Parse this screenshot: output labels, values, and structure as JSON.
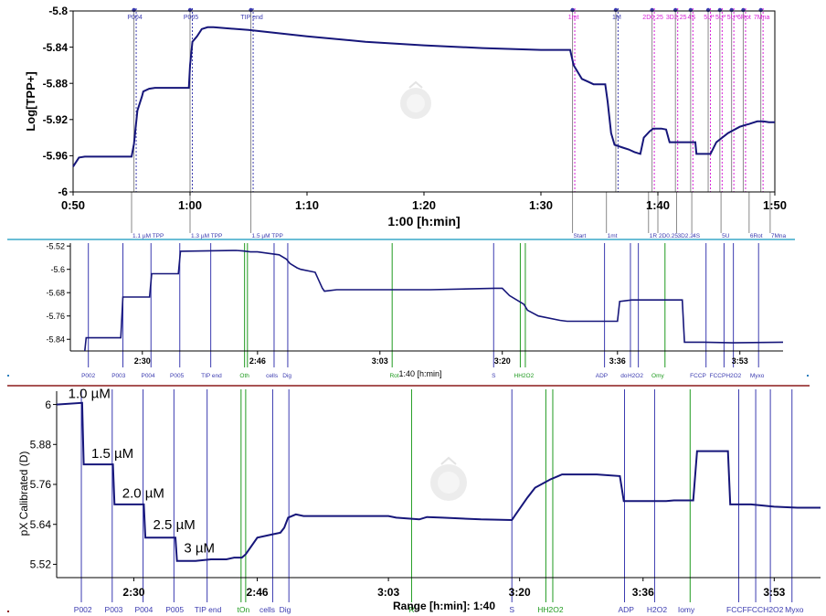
{
  "colors": {
    "trace": "#16167a",
    "event_blue": "#3b3bb0",
    "event_green": "#1f9a1f",
    "event_magenta": "#d81fd8",
    "event_gray": "#8a8a8a",
    "separator_top": "#3aa8c8",
    "separator_bottom": "#8b1a1a"
  },
  "chart_data": [
    {
      "type": "line",
      "id": "top",
      "ylabel": "Log[TPP+]",
      "xlabel": "1:00 [h:min]",
      "xlim": [
        50,
        110
      ],
      "ylim": [
        -6.0,
        -5.8
      ],
      "yticks": [
        -6.0,
        -5.96,
        -5.92,
        -5.88,
        -5.84,
        -5.8
      ],
      "ytick_labels": [
        "-6",
        "-5.96",
        "-5.92",
        "-5.88",
        "-5.84",
        "-5.8"
      ],
      "xticks": [
        50,
        60,
        70,
        80,
        90,
        100,
        110
      ],
      "xtick_labels": [
        "0:50",
        "1:00",
        "1:10",
        "1:20",
        "1:30",
        "1:40",
        "1:50"
      ],
      "series": [
        {
          "x": [
            50,
            50.5,
            51,
            55,
            55.2,
            55.5,
            55.9,
            56,
            56.5,
            57,
            59,
            59.9,
            60,
            60.2,
            60.6,
            61,
            61.5,
            62,
            65,
            70,
            75,
            80,
            85,
            90,
            92,
            92.5,
            92.8,
            93.5,
            94,
            94.5,
            95.5,
            95.7,
            96,
            96.3,
            97,
            97.5,
            98,
            98.5,
            98.8,
            99.3,
            99.6,
            100,
            100.3,
            100.7,
            101,
            101.5,
            101.8,
            102.5,
            103.2,
            103.3,
            103.6,
            104,
            104.5,
            105,
            106,
            107,
            107.5,
            107.8,
            108,
            108.5,
            109,
            109.5,
            110
          ],
          "y": [
            -5.972,
            -5.962,
            -5.961,
            -5.961,
            -5.947,
            -5.91,
            -5.894,
            -5.889,
            -5.886,
            -5.885,
            -5.885,
            -5.885,
            -5.86,
            -5.834,
            -5.828,
            -5.82,
            -5.818,
            -5.818,
            -5.821,
            -5.828,
            -5.834,
            -5.838,
            -5.841,
            -5.843,
            -5.843,
            -5.843,
            -5.86,
            -5.875,
            -5.878,
            -5.881,
            -5.881,
            -5.9,
            -5.935,
            -5.948,
            -5.951,
            -5.953,
            -5.956,
            -5.958,
            -5.94,
            -5.933,
            -5.93,
            -5.93,
            -5.93,
            -5.931,
            -5.945,
            -5.945,
            -5.945,
            -5.945,
            -5.945,
            -5.958,
            -5.958,
            -5.958,
            -5.958,
            -5.945,
            -5.935,
            -5.928,
            -5.926,
            -5.925,
            -5.924,
            -5.922,
            -5.922,
            -5.923,
            -5.923
          ]
        }
      ],
      "markers_top": [
        {
          "label": "P004",
          "x": 55.2,
          "color": "blue"
        },
        {
          "label": "P005",
          "x": 60.0,
          "color": "blue"
        },
        {
          "label": "TIP end",
          "x": 65.2,
          "color": "blue"
        },
        {
          "label": "1mt",
          "x": 92.7,
          "color": "magenta"
        },
        {
          "label": "1M",
          "x": 96.4,
          "color": "blue"
        },
        {
          "label": "2D0.25",
          "x": 99.5,
          "color": "magenta"
        },
        {
          "label": "3D2.25",
          "x": 101.5,
          "color": "magenta"
        },
        {
          "label": "4S",
          "x": 102.8,
          "color": "magenta"
        },
        {
          "label": "5U*",
          "x": 104.3,
          "color": "magenta"
        },
        {
          "label": "5U*",
          "x": 105.3,
          "color": "magenta"
        },
        {
          "label": "5U*",
          "x": 106.3,
          "color": "magenta"
        },
        {
          "label": "6Rot",
          "x": 107.3,
          "color": "magenta"
        },
        {
          "label": "7Mna",
          "x": 108.8,
          "color": "magenta"
        }
      ],
      "markers_bottom": [
        {
          "label": "1.1 µM TPP",
          "x": 55.0
        },
        {
          "label": "1.3 µM TPP",
          "x": 60.0
        },
        {
          "label": "1.5 µM TPP",
          "x": 65.2
        },
        {
          "label": "Start",
          "x": 92.7
        },
        {
          "label": "1mt",
          "x": 95.6
        },
        {
          "label": "1R",
          "x": 99.2
        },
        {
          "label": "2D0.25",
          "x": 100.0
        },
        {
          "label": "3D2.2",
          "x": 101.6
        },
        {
          "label": "4S",
          "x": 102.9
        },
        {
          "label": "5U",
          "x": 105.4
        },
        {
          "label": "6Rot",
          "x": 107.8
        },
        {
          "label": "7Mna",
          "x": 109.6
        }
      ]
    },
    {
      "type": "line",
      "id": "middle",
      "xlabel": "1:40 [h:min]",
      "xlim": [
        140,
        239
      ],
      "ylim": [
        -5.88,
        -5.51
      ],
      "yticks": [
        -5.84,
        -5.76,
        -5.68,
        -5.6,
        -5.52
      ],
      "ytick_labels": [
        "-5.84",
        "-5.76",
        "-5.68",
        "-5.6",
        "-5.52"
      ],
      "xticks": [
        150,
        166,
        183,
        200,
        216,
        233
      ],
      "xtick_labels": [
        "2:30",
        "2:46",
        "3:03",
        "3:20",
        "3:36",
        "3:53"
      ],
      "series": [
        {
          "x": [
            142,
            142.2,
            147,
            147.3,
            151,
            151.3,
            155,
            155.3,
            163,
            164,
            165,
            166,
            169,
            170,
            170.5,
            171.5,
            172,
            174,
            175,
            175.3,
            177,
            190,
            199,
            199.2,
            200,
            201,
            203,
            203.5,
            205,
            208,
            209,
            211,
            212,
            213,
            214,
            216,
            216.3,
            218,
            220,
            221,
            221.5,
            224,
            225,
            225.3,
            228,
            232,
            239
          ],
          "y": [
            -5.88,
            -5.835,
            -5.835,
            -5.695,
            -5.695,
            -5.615,
            -5.615,
            -5.538,
            -5.535,
            -5.537,
            -5.54,
            -5.54,
            -5.55,
            -5.565,
            -5.58,
            -5.595,
            -5.6,
            -5.61,
            -5.665,
            -5.675,
            -5.67,
            -5.67,
            -5.665,
            -5.665,
            -5.665,
            -5.69,
            -5.72,
            -5.74,
            -5.76,
            -5.775,
            -5.778,
            -5.778,
            -5.778,
            -5.778,
            -5.778,
            -5.778,
            -5.71,
            -5.705,
            -5.705,
            -5.705,
            -5.705,
            -5.705,
            -5.705,
            -5.85,
            -5.85,
            -5.852,
            -5.85
          ]
        }
      ],
      "markers": [
        {
          "label": "P002",
          "x": 142.5,
          "color": "blue"
        },
        {
          "label": "P003",
          "x": 147.3,
          "color": "blue"
        },
        {
          "label": "P004",
          "x": 151.2,
          "color": "blue"
        },
        {
          "label": "P005",
          "x": 155.2,
          "color": "blue"
        },
        {
          "label": "TIP end",
          "x": 159.5,
          "color": "blue"
        },
        {
          "label": "Oligo",
          "x": 164.2,
          "color": "green"
        },
        {
          "label": "On",
          "x": 164.6,
          "color": "green"
        },
        {
          "label": "cells",
          "x": 168.3,
          "color": "blue"
        },
        {
          "label": "Dig",
          "x": 170.2,
          "color": "blue"
        },
        {
          "label": "Rot",
          "x": 184.7,
          "color": "green"
        },
        {
          "label": "S",
          "x": 198.8,
          "color": "blue"
        },
        {
          "label": "H",
          "x": 202.5,
          "color": "green"
        },
        {
          "label": "H2O2",
          "x": 203.2,
          "color": "green"
        },
        {
          "label": "ADP",
          "x": 214.2,
          "color": "blue"
        },
        {
          "label": "do",
          "x": 217.8,
          "color": "blue"
        },
        {
          "label": "H2O2",
          "x": 218.9,
          "color": "blue"
        },
        {
          "label": "Omy",
          "x": 222.6,
          "color": "green"
        },
        {
          "label": "FCCP",
          "x": 228.3,
          "color": "blue"
        },
        {
          "label": "FCCP",
          "x": 230.8,
          "color": "blue"
        },
        {
          "label": "H2O2",
          "x": 232.1,
          "color": "blue"
        },
        {
          "label": "Myxo",
          "x": 235.6,
          "color": "blue"
        }
      ],
      "bottom_labels": [
        {
          "label": "P002",
          "x": 142.5
        },
        {
          "label": "P003",
          "x": 146.7
        },
        {
          "label": "P004",
          "x": 150.8
        },
        {
          "label": "P005",
          "x": 154.8
        },
        {
          "label": "TIP end",
          "x": 159.6
        },
        {
          "label": "Oth",
          "x": 164.2
        },
        {
          "label": "cells",
          "x": 168.0
        },
        {
          "label": "Dig",
          "x": 170.1
        },
        {
          "label": "Rot",
          "x": 185.0
        },
        {
          "label": "S",
          "x": 198.8
        },
        {
          "label": "HH2O2",
          "x": 203.0
        },
        {
          "label": "ADP",
          "x": 213.8
        },
        {
          "label": "do",
          "x": 216.9
        },
        {
          "label": "H2O2",
          "x": 218.5
        },
        {
          "label": "Omy",
          "x": 221.6
        },
        {
          "label": "FCCP",
          "x": 227.2
        },
        {
          "label": "FCCPH2O2",
          "x": 231.0
        },
        {
          "label": "Myxo",
          "x": 235.4
        }
      ]
    },
    {
      "type": "line",
      "id": "bottom",
      "ylabel": "pX Calibrated (D)",
      "xlabel": "Range [h:min]: 1:40",
      "xlim": [
        140,
        239
      ],
      "ylim": [
        5.48,
        6.04
      ],
      "yticks": [
        5.52,
        5.64,
        5.76,
        5.88,
        6.0
      ],
      "ytick_labels": [
        "5.52",
        "5.64",
        "5.76",
        "5.88",
        "6"
      ],
      "xticks": [
        150,
        166,
        183,
        200,
        216,
        233
      ],
      "xtick_labels": [
        "2:30",
        "2:46",
        "3:03",
        "3:20",
        "3:36",
        "3:53"
      ],
      "series": [
        {
          "x": [
            140,
            143.3,
            143.5,
            147.3,
            147.5,
            151.3,
            151.5,
            155.4,
            155.6,
            158,
            160,
            162,
            163,
            164,
            164.5,
            166,
            168,
            169,
            169.5,
            170,
            171,
            172,
            183,
            184,
            187,
            188,
            190,
            195,
            199,
            199.5,
            201,
            202,
            204,
            205,
            205.5,
            210,
            213,
            213.5,
            216,
            219,
            220,
            222.5,
            223,
            226,
            227,
            227.3,
            230,
            233,
            236,
            239
          ],
          "y": [
            6.0,
            6.005,
            5.82,
            5.82,
            5.7,
            5.7,
            5.6,
            5.6,
            5.53,
            5.53,
            5.535,
            5.535,
            5.54,
            5.54,
            5.55,
            5.6,
            5.61,
            5.615,
            5.63,
            5.66,
            5.67,
            5.665,
            5.665,
            5.66,
            5.655,
            5.662,
            5.66,
            5.655,
            5.653,
            5.67,
            5.72,
            5.75,
            5.775,
            5.785,
            5.79,
            5.79,
            5.785,
            5.71,
            5.71,
            5.71,
            5.712,
            5.712,
            5.86,
            5.86,
            5.86,
            5.7,
            5.7,
            5.693,
            5.69,
            5.69
          ]
        }
      ],
      "annotations": [
        {
          "label": "1.0 µM",
          "x": 141.5,
          "y": 6.02
        },
        {
          "label": "1.5 µM",
          "x": 144.5,
          "y": 5.84
        },
        {
          "label": "2.0 µM",
          "x": 148.5,
          "y": 5.72
        },
        {
          "label": "2.5 µM",
          "x": 152.5,
          "y": 5.625
        },
        {
          "label": "3 µM",
          "x": 156.5,
          "y": 5.555
        }
      ],
      "markers": [
        {
          "label": "P002",
          "x": 143.2,
          "color": "blue"
        },
        {
          "label": "P003",
          "x": 147.2,
          "color": "blue"
        },
        {
          "label": "P004",
          "x": 151.2,
          "color": "blue"
        },
        {
          "label": "P005",
          "x": 155.2,
          "color": "blue"
        },
        {
          "label": "TIP end",
          "x": 159.5,
          "color": "blue"
        },
        {
          "label": "Oligo",
          "x": 163.9,
          "color": "green"
        },
        {
          "label": "On",
          "x": 164.5,
          "color": "green"
        },
        {
          "label": "cells",
          "x": 168.0,
          "color": "blue"
        },
        {
          "label": "Dig",
          "x": 170.1,
          "color": "blue"
        },
        {
          "label": "R",
          "x": 186.0,
          "color": "green"
        },
        {
          "label": "S",
          "x": 199.0,
          "color": "blue"
        },
        {
          "label": "H",
          "x": 203.4,
          "color": "green"
        },
        {
          "label": "H2O2",
          "x": 204.3,
          "color": "green"
        },
        {
          "label": "ADP",
          "x": 213.6,
          "color": "blue"
        },
        {
          "label": "H2O2",
          "x": 217.5,
          "color": "blue"
        },
        {
          "label": "Omy",
          "x": 222.1,
          "color": "green"
        },
        {
          "label": "FCCP",
          "x": 228.4,
          "color": "blue"
        },
        {
          "label": "FCCP",
          "x": 230.6,
          "color": "blue"
        },
        {
          "label": "H2O2",
          "x": 232.5,
          "color": "blue"
        },
        {
          "label": "Myxo",
          "x": 235.3,
          "color": "blue"
        }
      ],
      "bottom_labels": [
        {
          "label": "P002",
          "x": 143.4
        },
        {
          "label": "P003",
          "x": 147.4
        },
        {
          "label": "P004",
          "x": 151.3
        },
        {
          "label": "P005",
          "x": 155.3
        },
        {
          "label": "TIP end",
          "x": 159.6
        },
        {
          "label": "tOn",
          "x": 164.2
        },
        {
          "label": "cells",
          "x": 167.3
        },
        {
          "label": "Dig",
          "x": 169.6
        },
        {
          "label": "R",
          "x": 186.0
        },
        {
          "label": "S",
          "x": 199.0
        },
        {
          "label": "HH2O2",
          "x": 204.0
        },
        {
          "label": "ADP",
          "x": 213.8
        },
        {
          "label": "H2O2",
          "x": 217.8
        },
        {
          "label": "Iomy",
          "x": 221.6
        },
        {
          "label": "FCCFFCCH2O2",
          "x": 230.5
        },
        {
          "label": "Myxo",
          "x": 235.6
        }
      ]
    }
  ]
}
